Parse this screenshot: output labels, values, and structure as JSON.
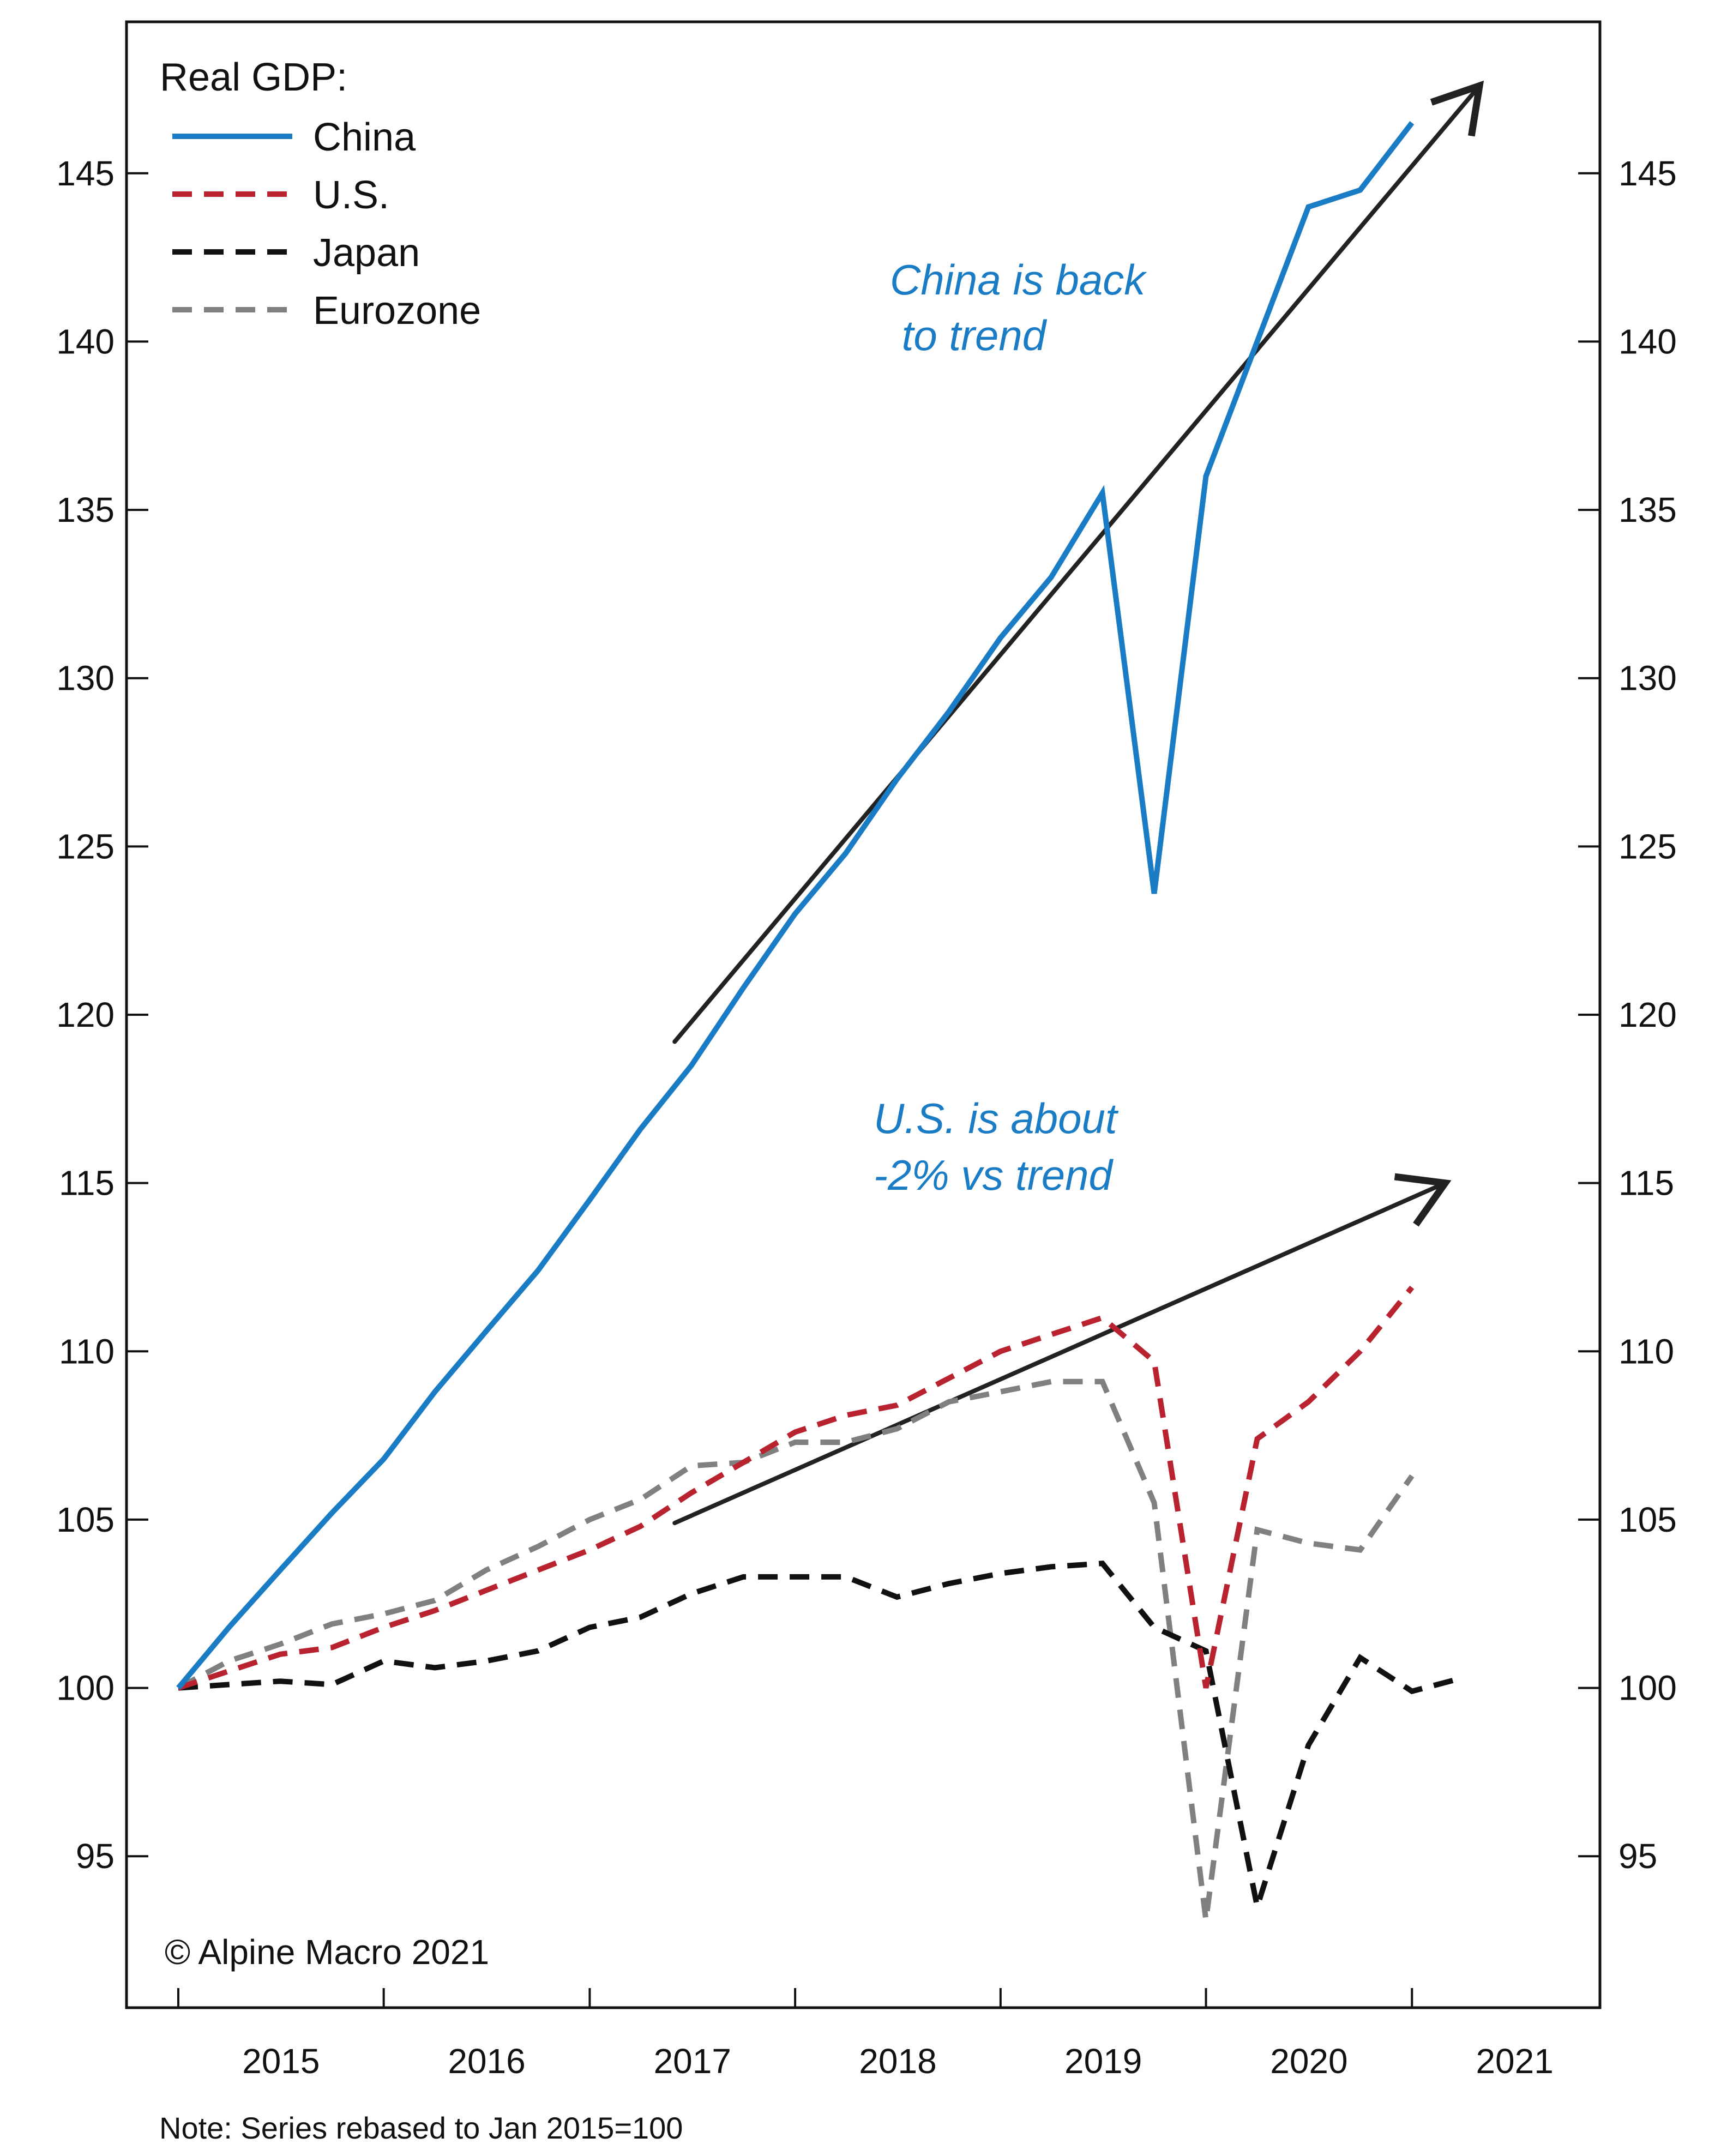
{
  "chart_data": {
    "type": "line",
    "legend_title": "Real GDP:",
    "legend_placement": "top-left",
    "x_ticks": [
      "2015",
      "2016",
      "2017",
      "2018",
      "2019",
      "2020",
      "2021"
    ],
    "ylim": [
      90.5,
      149.5
    ],
    "y_ticks": [
      95,
      100,
      105,
      110,
      115,
      120,
      125,
      130,
      135,
      140,
      145
    ],
    "grid": false,
    "x": [
      "2015-01",
      "2015-04",
      "2015-07",
      "2015-10",
      "2016-01",
      "2016-04",
      "2016-07",
      "2016-10",
      "2017-01",
      "2017-04",
      "2017-07",
      "2017-10",
      "2018-01",
      "2018-04",
      "2018-07",
      "2018-10",
      "2019-01",
      "2019-04",
      "2019-07",
      "2019-10",
      "2020-01",
      "2020-04",
      "2020-07",
      "2020-10",
      "2021-01",
      "2021-04"
    ],
    "series": [
      {
        "name": "China",
        "color": "#1a7cc4",
        "style": "solid",
        "values": [
          100.0,
          101.8,
          103.5,
          105.2,
          106.8,
          108.8,
          110.6,
          112.4,
          114.5,
          116.6,
          118.5,
          120.8,
          123.0,
          124.8,
          127.0,
          129.0,
          131.2,
          133.0,
          135.5,
          123.6,
          136.0,
          140.0,
          144.0,
          144.5,
          146.5,
          null
        ]
      },
      {
        "name": "U.S.",
        "color": "#b8232f",
        "style": "dashed",
        "values": [
          100.0,
          100.5,
          101.0,
          101.2,
          101.8,
          102.3,
          102.9,
          103.5,
          104.1,
          104.8,
          105.8,
          106.7,
          107.6,
          108.1,
          108.4,
          109.2,
          110.0,
          110.5,
          111.0,
          109.7,
          100.0,
          107.4,
          108.5,
          110.0,
          111.9,
          null
        ]
      },
      {
        "name": "Japan",
        "color": "#111111",
        "style": "dashed",
        "values": [
          100.0,
          100.1,
          100.2,
          100.1,
          100.8,
          100.6,
          100.8,
          101.1,
          101.8,
          102.1,
          102.8,
          103.3,
          103.3,
          103.3,
          102.7,
          103.1,
          103.4,
          103.6,
          103.7,
          101.8,
          101.1,
          93.5,
          98.3,
          100.9,
          99.9,
          100.3
        ]
      },
      {
        "name": "Eurozone",
        "color": "#808080",
        "style": "dashed",
        "values": [
          100.0,
          100.8,
          101.3,
          101.9,
          102.2,
          102.6,
          103.5,
          104.2,
          105.0,
          105.6,
          106.6,
          106.7,
          107.3,
          107.3,
          107.7,
          108.5,
          108.8,
          109.1,
          109.1,
          105.5,
          93.1,
          104.7,
          104.3,
          104.1,
          106.3,
          null
        ]
      }
    ],
    "trend_arrows": [
      {
        "label": "China trend",
        "from": [
          "2017-06",
          119.2
        ],
        "to": [
          "2021-05",
          147.6
        ]
      },
      {
        "label": "U.S. trend",
        "from": [
          "2017-06",
          104.9
        ],
        "to": [
          "2021-03",
          115.0
        ]
      }
    ],
    "annotations": [
      {
        "lines": [
          "China is back",
          " to trend"
        ],
        "color": "#1a7cc4"
      },
      {
        "lines": [
          "U.S. is about",
          "-2% vs trend"
        ],
        "color": "#1a7cc4"
      }
    ],
    "copyright": "© Alpine Macro 2021",
    "note": "Note: Series rebased to Jan 2015=100"
  }
}
